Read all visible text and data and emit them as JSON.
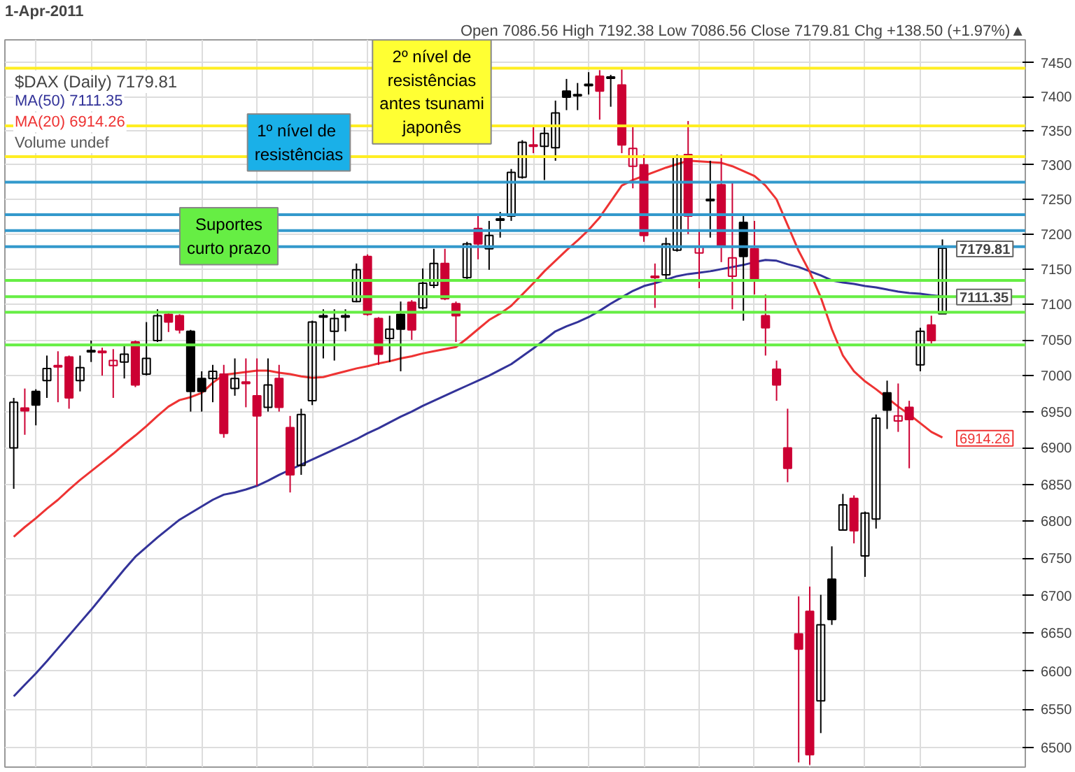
{
  "chart_data": {
    "type": "candlestick",
    "categories": [
      null,
      null,
      null,
      null,
      null,
      null,
      null,
      null,
      null,
      null,
      null,
      null,
      null,
      null,
      null,
      null,
      null,
      null,
      null,
      null,
      null,
      null,
      null,
      null,
      null,
      null,
      null,
      null,
      null,
      null,
      null,
      null,
      null,
      null,
      null,
      null,
      null,
      null,
      null,
      null,
      null,
      null,
      null,
      null,
      null,
      null,
      null,
      null,
      null,
      null,
      null,
      null,
      null,
      null,
      null,
      null,
      null,
      null,
      null,
      null,
      null,
      null,
      null,
      null,
      null,
      null,
      null,
      null,
      null,
      null,
      null,
      null,
      null,
      null,
      null,
      null,
      null,
      null,
      null,
      null,
      null,
      null,
      null,
      null,
      null
    ],
    "ohlc": [
      [
        6900,
        6969,
        6844,
        6963
      ],
      [
        6955,
        6982,
        6918,
        6951
      ],
      [
        6978,
        6981,
        6931,
        6959
      ],
      [
        6993,
        7028,
        6969,
        7010
      ],
      [
        7014,
        7034,
        6963,
        7012
      ],
      [
        7026,
        7028,
        6954,
        6969
      ],
      [
        6993,
        7028,
        6978,
        7011
      ],
      [
        7035,
        7049,
        7019,
        7033
      ],
      [
        7034,
        7039,
        7000,
        7032
      ],
      [
        7014,
        7037,
        6969,
        7021
      ],
      [
        7019,
        7043,
        6996,
        7030
      ],
      [
        7047,
        7049,
        6984,
        6987
      ],
      [
        7002,
        7075,
        7000,
        7024
      ],
      [
        7049,
        7093,
        7047,
        7084
      ],
      [
        7086,
        7089,
        7061,
        7075
      ],
      [
        7084,
        7086,
        7059,
        7064
      ],
      [
        7062,
        7064,
        6950,
        6978
      ],
      [
        6996,
        7006,
        6950,
        6978
      ],
      [
        6996,
        7015,
        6963,
        7006
      ],
      [
        7002,
        7015,
        6914,
        6920
      ],
      [
        6982,
        7024,
        6972,
        6996
      ],
      [
        6991,
        7024,
        6956,
        6989
      ],
      [
        6972,
        7024,
        6848,
        6944
      ],
      [
        6956,
        7024,
        6950,
        6987
      ],
      [
        6996,
        7015,
        6950,
        6956
      ],
      [
        6928,
        6944,
        6839,
        6863
      ],
      [
        6876,
        6954,
        6863,
        6946
      ],
      [
        6965,
        7077,
        6959,
        7075
      ],
      [
        7084,
        7093,
        7024,
        7082
      ],
      [
        7062,
        7093,
        7021,
        7080
      ],
      [
        7082,
        7093,
        7062,
        7084
      ],
      [
        7104,
        7158,
        7103,
        7149
      ],
      [
        7168,
        7171,
        7084,
        7086
      ],
      [
        7080,
        7082,
        7015,
        7030
      ],
      [
        7052,
        7084,
        7019,
        7065
      ],
      [
        7086,
        7104,
        7006,
        7065
      ],
      [
        7103,
        7106,
        7050,
        7064
      ],
      [
        7095,
        7151,
        7093,
        7130
      ],
      [
        7127,
        7179,
        7123,
        7158
      ],
      [
        7158,
        7179,
        7106,
        7108
      ],
      [
        7101,
        7104,
        7047,
        7084
      ],
      [
        7138,
        7189,
        7136,
        7186
      ],
      [
        7208,
        7226,
        7164,
        7186
      ],
      [
        7179,
        7219,
        7149,
        7198
      ],
      [
        7220,
        7232,
        7195,
        7222
      ],
      [
        7226,
        7294,
        7219,
        7289
      ],
      [
        7282,
        7336,
        7280,
        7333
      ],
      [
        7329,
        7355,
        7317,
        7327
      ],
      [
        7327,
        7355,
        7278,
        7346
      ],
      [
        7325,
        7394,
        7306,
        7376
      ],
      [
        7408,
        7426,
        7380,
        7399
      ],
      [
        7403,
        7420,
        7380,
        7401
      ],
      [
        7418,
        7436,
        7403,
        7416
      ],
      [
        7430,
        7439,
        7366,
        7408
      ],
      [
        7429,
        7432,
        7385,
        7427
      ],
      [
        7417,
        7441,
        7317,
        7329
      ],
      [
        7298,
        7355,
        7266,
        7324
      ],
      [
        7300,
        7315,
        7189,
        7198
      ],
      [
        7140,
        7158,
        7095,
        7138
      ],
      [
        7142,
        7195,
        7136,
        7186
      ],
      [
        7177,
        7315,
        7175,
        7311
      ],
      [
        7315,
        7364,
        7200,
        7226
      ],
      [
        7173,
        7204,
        7123,
        7182
      ],
      [
        7250,
        7306,
        7195,
        7248
      ],
      [
        7271,
        7315,
        7160,
        7182
      ],
      [
        7140,
        7274,
        7093,
        7166
      ],
      [
        7217,
        7226,
        7077,
        7168
      ],
      [
        7179,
        7219,
        7114,
        7136
      ],
      [
        7084,
        7114,
        7028,
        7067
      ],
      [
        7009,
        7021,
        6965,
        6987
      ],
      [
        6900,
        6954,
        6853,
        6872
      ],
      [
        6649,
        6699,
        6481,
        6629
      ],
      [
        6679,
        6712,
        6478,
        6491
      ],
      [
        6561,
        6701,
        6519,
        6661
      ],
      [
        6722,
        6766,
        6661,
        6668
      ],
      [
        6788,
        6837,
        6787,
        6822
      ],
      [
        6831,
        6835,
        6770,
        6787
      ],
      [
        6753,
        6813,
        6725,
        6811
      ],
      [
        6803,
        6946,
        6790,
        6941
      ],
      [
        6976,
        6993,
        6926,
        6952
      ],
      [
        6937,
        6989,
        6922,
        6944
      ],
      [
        6956,
        6965,
        6872,
        6939
      ],
      [
        7015,
        7067,
        7006,
        7062
      ],
      [
        7071,
        7084,
        7045,
        7049
      ],
      [
        7086.56,
        7192.38,
        7086.56,
        7179.81
      ]
    ],
    "colors": [
      "#000000",
      "#cc0033",
      "#000000",
      "#000000",
      "#cc0033",
      "#cc0033",
      "#000000",
      "#000000",
      "#cc0033",
      "#cc0033",
      "#000000",
      "#cc0033",
      "#000000",
      "#000000",
      "#cc0033",
      "#cc0033",
      "#000000",
      "#000000",
      "#000000",
      "#cc0033",
      "#000000",
      "#cc0033",
      "#cc0033",
      "#000000",
      "#cc0033",
      "#cc0033",
      "#000000",
      "#000000",
      "#000000",
      "#000000",
      "#000000",
      "#000000",
      "#cc0033",
      "#cc0033",
      "#000000",
      "#000000",
      "#cc0033",
      "#000000",
      "#000000",
      "#cc0033",
      "#cc0033",
      "#000000",
      "#cc0033",
      "#000000",
      "#000000",
      "#000000",
      "#000000",
      "#cc0033",
      "#000000",
      "#000000",
      "#000000",
      "#000000",
      "#000000",
      "#cc0033",
      "#000000",
      "#cc0033",
      "#cc0033",
      "#cc0033",
      "#cc0033",
      "#000000",
      "#000000",
      "#cc0033",
      "#cc0033",
      "#000000",
      "#cc0033",
      "#cc0033",
      "#000000",
      "#cc0033",
      "#cc0033",
      "#cc0033",
      "#cc0033",
      "#cc0033",
      "#cc0033",
      "#000000",
      "#000000",
      "#000000",
      "#cc0033",
      "#000000",
      "#000000",
      "#000000",
      "#cc0033",
      "#cc0033",
      "#000000",
      "#cc0033",
      "#000000"
    ],
    "series": [
      {
        "type": "line",
        "name": "MA(50) 7111.35",
        "color": "#333399",
        "values": [
          6567,
          6582,
          6597,
          6613,
          6630,
          6647,
          6664,
          6681,
          6699,
          6717,
          6735,
          6752,
          6765,
          6778,
          6790,
          6802,
          6811,
          6820,
          6829,
          6836,
          6839,
          6843,
          6848,
          6855,
          6863,
          6870,
          6877,
          6884,
          6891,
          6898,
          6905,
          6912,
          6920,
          6927,
          6935,
          6943,
          6950,
          6958,
          6965,
          6972,
          6979,
          6986,
          6993,
          7000,
          7008,
          7016,
          7027,
          7038,
          7050,
          7062,
          7069,
          7075,
          7082,
          7091,
          7101,
          7110,
          7119,
          7126,
          7130,
          7135,
          7140,
          7143,
          7145,
          7147,
          7150,
          7153,
          7156,
          7160,
          7163,
          7162,
          7157,
          7153,
          7147,
          7141,
          7134,
          7131,
          7129,
          7126,
          7124,
          7121,
          7118,
          7116,
          7115,
          7113,
          7111.35
        ]
      },
      {
        "type": "line",
        "name": "MA(20) 6914.26",
        "color": "#ee3333",
        "values": [
          6779,
          6792,
          6804,
          6817,
          6829,
          6843,
          6856,
          6868,
          6880,
          6892,
          6905,
          6917,
          6930,
          6944,
          6957,
          6966,
          6970,
          6976,
          6990,
          7001,
          7003,
          7005,
          7007,
          7007,
          7004,
          7002,
          6999,
          6997,
          6998,
          7002,
          7006,
          7010,
          7013,
          7017,
          7020,
          7024,
          7027,
          7031,
          7034,
          7037,
          7040,
          7052,
          7065,
          7078,
          7087,
          7098,
          7114,
          7130,
          7147,
          7162,
          7177,
          7191,
          7206,
          7224,
          7247,
          7270,
          7278,
          7284,
          7290,
          7296,
          7301,
          7306,
          7305,
          7304,
          7303,
          7298,
          7291,
          7284,
          7270,
          7250,
          7213,
          7176,
          7146,
          7110,
          7065,
          7028,
          7006,
          6992,
          6981,
          6969,
          6957,
          6946,
          6934,
          6922,
          6914.26
        ]
      }
    ],
    "ylim": [
      6475,
      7484
    ],
    "yticks": [
      6500,
      6550,
      6600,
      6650,
      6700,
      6750,
      6800,
      6850,
      6900,
      6950,
      7000,
      7050,
      7100,
      7150,
      7200,
      7250,
      7300,
      7350,
      7400,
      7450
    ],
    "log": true,
    "grid": true,
    "legend": "top left",
    "ref_lines": [
      {
        "axis": "y",
        "value": 7442,
        "color": "#ffee22"
      },
      {
        "axis": "y",
        "value": 7357,
        "color": "#ffee22"
      },
      {
        "axis": "y",
        "value": 7312,
        "color": "#ffee22"
      },
      {
        "axis": "y",
        "value": 7275,
        "color": "#3399cc"
      },
      {
        "axis": "y",
        "value": 7228,
        "color": "#3399cc"
      },
      {
        "axis": "y",
        "value": 7205,
        "color": "#3399cc"
      },
      {
        "axis": "y",
        "value": 7182,
        "color": "#3399cc"
      },
      {
        "axis": "y",
        "value": 7134,
        "color": "#66ee44"
      },
      {
        "axis": "y",
        "value": 7111,
        "color": "#66ee44"
      },
      {
        "axis": "y",
        "value": 7089,
        "color": "#66ee44"
      },
      {
        "axis": "y",
        "value": 7043,
        "color": "#66ee44"
      }
    ],
    "annotations": [
      "1-Apr-2011",
      "Open 7086.56 High 7192.38 Low 7086.56 Close 7179.81 Chg +138.50 (+1.97%)▲",
      "$DAX (Daily) 7179.81",
      "Volume undef",
      "Suportes\ncurto prazo",
      "1º nível  de\nresistências",
      "2º nível de\nresistências\nantes tsunami\njaponês",
      {
        "text": "7179.81",
        "y": 7179.81
      },
      {
        "text": "7111.35",
        "y": 7111.35
      },
      "6914.26"
    ]
  }
}
